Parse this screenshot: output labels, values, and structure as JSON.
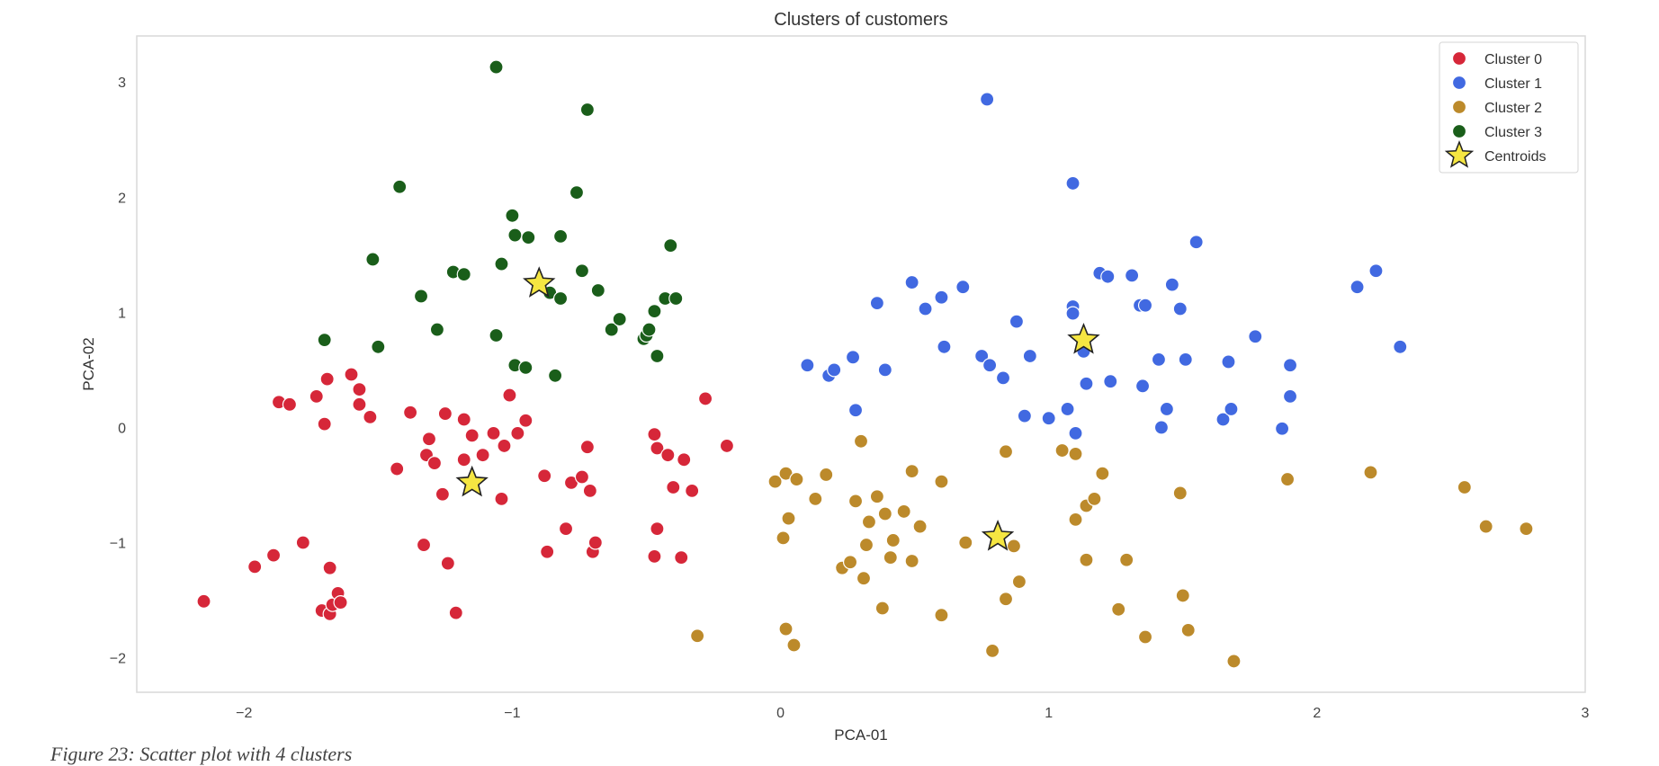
{
  "caption": "Figure 23: Scatter plot with 4 clusters",
  "chart_data": {
    "type": "scatter",
    "title": "Clusters of customers",
    "xlabel": "PCA-01",
    "ylabel": "PCA-02",
    "xlim": [
      -2.4,
      3.0
    ],
    "ylim": [
      -2.3,
      3.4
    ],
    "xticks": [
      -2,
      -1,
      0,
      1,
      2,
      3
    ],
    "yticks": [
      -2,
      -1,
      0,
      1,
      2,
      3
    ],
    "xtick_labels": [
      "−2",
      "−1",
      "0",
      "1",
      "2",
      "3"
    ],
    "ytick_labels": [
      "−2",
      "−1",
      "0",
      "1",
      "2",
      "3"
    ],
    "grid": false,
    "legend_position": "top-right",
    "series": [
      {
        "name": "Cluster 0",
        "color": "#d62739",
        "points": [
          [
            -2.15,
            -1.51
          ],
          [
            -1.96,
            -1.21
          ],
          [
            -1.89,
            -1.11
          ],
          [
            -1.87,
            0.22
          ],
          [
            -1.83,
            0.2
          ],
          [
            -1.78,
            -1.0
          ],
          [
            -1.73,
            0.27
          ],
          [
            -1.71,
            -1.59
          ],
          [
            -1.7,
            0.03
          ],
          [
            -1.69,
            0.42
          ],
          [
            -1.68,
            -1.22
          ],
          [
            -1.68,
            -1.62
          ],
          [
            -1.67,
            -1.54
          ],
          [
            -1.65,
            -1.44
          ],
          [
            -1.64,
            -1.52
          ],
          [
            -1.6,
            0.46
          ],
          [
            -1.57,
            0.33
          ],
          [
            -1.57,
            0.2
          ],
          [
            -1.53,
            0.09
          ],
          [
            -1.43,
            -0.36
          ],
          [
            -1.38,
            0.13
          ],
          [
            -1.33,
            -1.02
          ],
          [
            -1.32,
            -0.24
          ],
          [
            -1.31,
            -0.1
          ],
          [
            -1.29,
            -0.31
          ],
          [
            -1.26,
            -0.58
          ],
          [
            -1.25,
            0.12
          ],
          [
            -1.24,
            -1.18
          ],
          [
            -1.21,
            -1.61
          ],
          [
            -1.18,
            0.07
          ],
          [
            -1.18,
            -0.28
          ],
          [
            -1.15,
            -0.07
          ],
          [
            -1.11,
            -0.24
          ],
          [
            -1.07,
            -0.05
          ],
          [
            -1.04,
            -0.62
          ],
          [
            -1.03,
            -0.16
          ],
          [
            -1.01,
            0.28
          ],
          [
            -0.98,
            -0.05
          ],
          [
            -0.95,
            0.06
          ],
          [
            -0.88,
            -0.42
          ],
          [
            -0.87,
            -1.08
          ],
          [
            -0.8,
            -0.88
          ],
          [
            -0.78,
            -0.48
          ],
          [
            -0.74,
            -0.43
          ],
          [
            -0.72,
            -0.17
          ],
          [
            -0.71,
            -0.55
          ],
          [
            -0.7,
            -1.08
          ],
          [
            -0.69,
            -1.0
          ],
          [
            -0.47,
            -0.06
          ],
          [
            -0.47,
            -1.12
          ],
          [
            -0.46,
            -0.18
          ],
          [
            -0.46,
            -0.88
          ],
          [
            -0.42,
            -0.24
          ],
          [
            -0.4,
            -0.52
          ],
          [
            -0.37,
            -1.13
          ],
          [
            -0.36,
            -0.28
          ],
          [
            -0.33,
            -0.55
          ],
          [
            -0.28,
            0.25
          ],
          [
            -0.2,
            -0.16
          ]
        ]
      },
      {
        "name": "Cluster 1",
        "color": "#4169e1",
        "points": [
          [
            0.1,
            0.54
          ],
          [
            0.18,
            0.45
          ],
          [
            0.2,
            0.5
          ],
          [
            0.27,
            0.61
          ],
          [
            0.28,
            0.15
          ],
          [
            0.36,
            1.08
          ],
          [
            0.39,
            0.5
          ],
          [
            0.49,
            1.26
          ],
          [
            0.54,
            1.03
          ],
          [
            0.6,
            1.13
          ],
          [
            0.61,
            0.7
          ],
          [
            0.68,
            1.22
          ],
          [
            0.75,
            0.62
          ],
          [
            0.77,
            2.85
          ],
          [
            0.78,
            0.54
          ],
          [
            0.83,
            0.43
          ],
          [
            0.88,
            0.92
          ],
          [
            0.91,
            0.1
          ],
          [
            0.93,
            0.62
          ],
          [
            1.0,
            0.08
          ],
          [
            1.07,
            0.16
          ],
          [
            1.09,
            2.12
          ],
          [
            1.09,
            1.05
          ],
          [
            1.09,
            0.99
          ],
          [
            1.1,
            -0.05
          ],
          [
            1.13,
            0.66
          ],
          [
            1.14,
            0.38
          ],
          [
            1.19,
            1.34
          ],
          [
            1.22,
            1.31
          ],
          [
            1.23,
            0.4
          ],
          [
            1.31,
            1.32
          ],
          [
            1.34,
            1.06
          ],
          [
            1.35,
            0.36
          ],
          [
            1.36,
            1.06
          ],
          [
            1.41,
            0.59
          ],
          [
            1.42,
            0.0
          ],
          [
            1.44,
            0.16
          ],
          [
            1.46,
            1.24
          ],
          [
            1.49,
            1.03
          ],
          [
            1.51,
            0.59
          ],
          [
            1.55,
            1.61
          ],
          [
            1.65,
            0.07
          ],
          [
            1.67,
            0.57
          ],
          [
            1.68,
            0.16
          ],
          [
            1.77,
            0.79
          ],
          [
            1.87,
            -0.01
          ],
          [
            1.9,
            0.54
          ],
          [
            1.9,
            0.27
          ],
          [
            2.15,
            1.22
          ],
          [
            2.22,
            1.36
          ],
          [
            2.31,
            0.7
          ]
        ]
      },
      {
        "name": "Cluster 2",
        "color": "#bc8a2b",
        "points": [
          [
            -0.31,
            -1.81
          ],
          [
            -0.02,
            -0.47
          ],
          [
            0.01,
            -0.96
          ],
          [
            0.02,
            -0.4
          ],
          [
            0.02,
            -1.75
          ],
          [
            0.03,
            -0.79
          ],
          [
            0.05,
            -1.89
          ],
          [
            0.06,
            -0.45
          ],
          [
            0.13,
            -0.62
          ],
          [
            0.17,
            -0.41
          ],
          [
            0.23,
            -1.22
          ],
          [
            0.26,
            -1.17
          ],
          [
            0.28,
            -0.64
          ],
          [
            0.3,
            -0.12
          ],
          [
            0.31,
            -1.31
          ],
          [
            0.32,
            -1.02
          ],
          [
            0.33,
            -0.82
          ],
          [
            0.36,
            -0.6
          ],
          [
            0.38,
            -1.57
          ],
          [
            0.39,
            -0.75
          ],
          [
            0.41,
            -1.13
          ],
          [
            0.42,
            -0.98
          ],
          [
            0.46,
            -0.73
          ],
          [
            0.49,
            -0.38
          ],
          [
            0.49,
            -1.16
          ],
          [
            0.52,
            -0.86
          ],
          [
            0.6,
            -0.47
          ],
          [
            0.6,
            -1.63
          ],
          [
            0.69,
            -1.0
          ],
          [
            0.79,
            -1.94
          ],
          [
            0.84,
            -0.21
          ],
          [
            0.84,
            -1.49
          ],
          [
            0.87,
            -1.03
          ],
          [
            0.89,
            -1.34
          ],
          [
            1.05,
            -0.2
          ],
          [
            1.1,
            -0.23
          ],
          [
            1.1,
            -0.8
          ],
          [
            1.14,
            -0.68
          ],
          [
            1.14,
            -1.15
          ],
          [
            1.17,
            -0.62
          ],
          [
            1.2,
            -0.4
          ],
          [
            1.26,
            -1.58
          ],
          [
            1.29,
            -1.15
          ],
          [
            1.36,
            -1.82
          ],
          [
            1.49,
            -0.57
          ],
          [
            1.5,
            -1.46
          ],
          [
            1.52,
            -1.76
          ],
          [
            1.69,
            -2.03
          ],
          [
            1.89,
            -0.45
          ],
          [
            2.2,
            -0.39
          ],
          [
            2.55,
            -0.52
          ],
          [
            2.63,
            -0.86
          ],
          [
            2.78,
            -0.88
          ]
        ]
      },
      {
        "name": "Cluster 3",
        "color": "#1a5e1a",
        "points": [
          [
            -1.7,
            0.76
          ],
          [
            -1.5,
            0.7
          ],
          [
            -1.52,
            1.46
          ],
          [
            -1.42,
            2.09
          ],
          [
            -1.34,
            1.14
          ],
          [
            -1.28,
            0.85
          ],
          [
            -1.22,
            1.35
          ],
          [
            -1.18,
            1.33
          ],
          [
            -1.06,
            3.13
          ],
          [
            -1.06,
            0.8
          ],
          [
            -1.04,
            1.42
          ],
          [
            -1.0,
            1.84
          ],
          [
            -0.99,
            1.67
          ],
          [
            -0.99,
            0.54
          ],
          [
            -0.95,
            0.52
          ],
          [
            -0.94,
            1.65
          ],
          [
            -0.86,
            1.17
          ],
          [
            -0.82,
            1.66
          ],
          [
            -0.82,
            1.12
          ],
          [
            -0.84,
            0.45
          ],
          [
            -0.76,
            2.04
          ],
          [
            -0.74,
            1.36
          ],
          [
            -0.72,
            2.76
          ],
          [
            -0.68,
            1.19
          ],
          [
            -0.63,
            0.85
          ],
          [
            -0.6,
            0.94
          ],
          [
            -0.51,
            0.77
          ],
          [
            -0.5,
            0.8
          ],
          [
            -0.49,
            0.85
          ],
          [
            -0.47,
            1.01
          ],
          [
            -0.46,
            0.62
          ],
          [
            -0.43,
            1.12
          ],
          [
            -0.41,
            1.58
          ],
          [
            -0.39,
            1.12
          ]
        ]
      }
    ],
    "centroids": {
      "name": "Centroids",
      "color": "#f5e642",
      "points": [
        [
          -1.15,
          -0.48
        ],
        [
          -0.9,
          1.25
        ],
        [
          0.81,
          -0.95
        ],
        [
          1.13,
          0.76
        ]
      ]
    }
  }
}
